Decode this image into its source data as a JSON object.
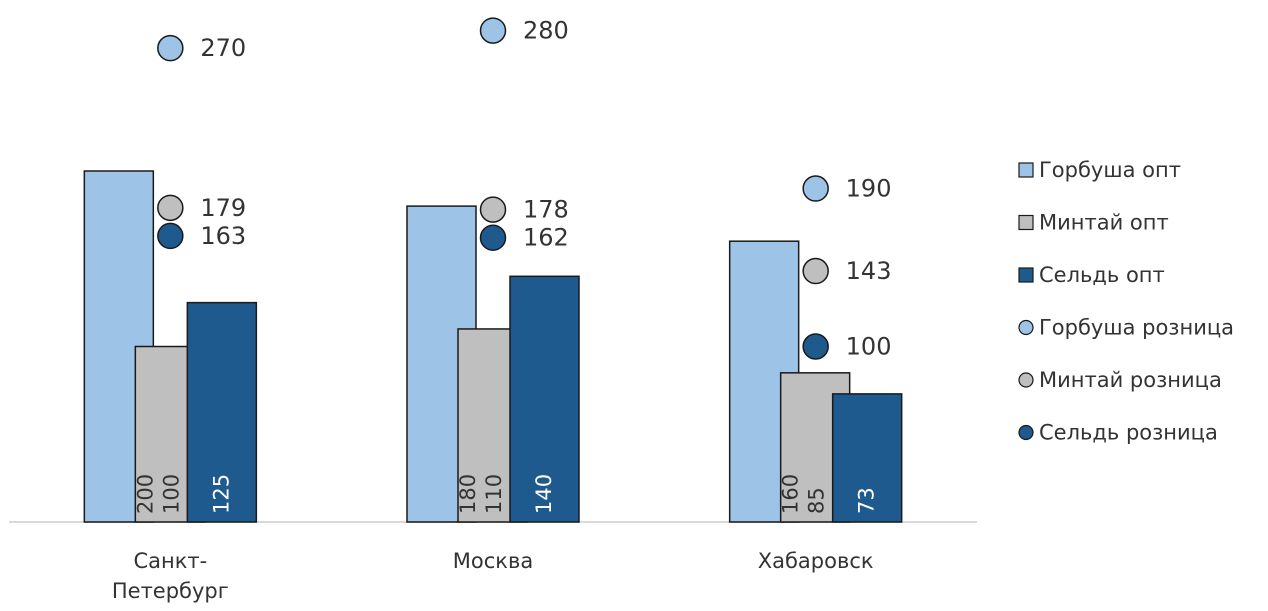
{
  "chart_data": {
    "type": "bar",
    "categories": [
      "Санкт-\nПетербург",
      "Москва",
      "Хабаровск"
    ],
    "ylim": [
      0,
      300
    ],
    "legend": "right",
    "series": [
      {
        "name": "Горбуша опт",
        "type": "bar",
        "color": "#9dc3e6",
        "values": [
          200,
          180,
          160
        ]
      },
      {
        "name": "Минтай опт",
        "type": "bar",
        "color": "#bfbfbf",
        "values": [
          100,
          110,
          85
        ]
      },
      {
        "name": "Сельдь опт",
        "type": "bar",
        "color": "#1f5a8f",
        "values": [
          125,
          140,
          73
        ]
      },
      {
        "name": "Горбуша розница",
        "type": "scatter",
        "color": "#9dc3e6",
        "values": [
          270,
          280,
          190
        ]
      },
      {
        "name": "Минтай розница",
        "type": "scatter",
        "color": "#bfbfbf",
        "values": [
          179,
          178,
          143
        ]
      },
      {
        "name": "Сельдь розница",
        "type": "scatter",
        "color": "#1f5a8f",
        "values": [
          163,
          162,
          100
        ]
      }
    ]
  }
}
